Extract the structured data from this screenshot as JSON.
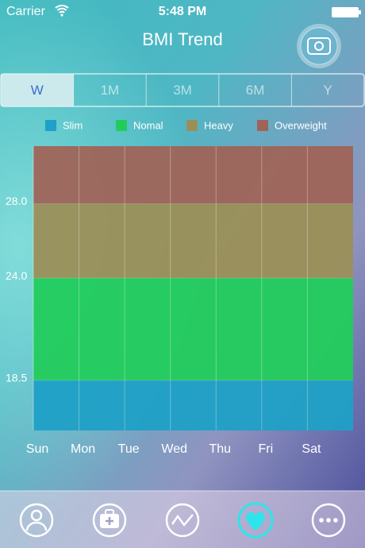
{
  "status_bar": {
    "carrier": "Carrier",
    "time": "5:48 PM"
  },
  "title": "BMI Trend",
  "tabs": [
    "W",
    "1M",
    "3M",
    "6M",
    "Y"
  ],
  "selected_tab": 0,
  "chart_data": {
    "type": "band",
    "categories": [
      "Sun",
      "Mon",
      "Tue",
      "Wed",
      "Thu",
      "Fri",
      "Sat"
    ],
    "series": [
      {
        "name": "Slim",
        "color": "#1fa0c6"
      },
      {
        "name": "Nomal",
        "color": "#22cc5c"
      },
      {
        "name": "Heavy",
        "color": "#9b8f59"
      },
      {
        "name": "Overweight",
        "color": "#9f6459"
      }
    ],
    "ylim": [
      15.8,
      31.1
    ],
    "yticks": [
      18.5,
      {
        "value": 24,
        "label": "24.0"
      },
      {
        "value": 28,
        "label": "28.0"
      }
    ],
    "grid": true
  }
}
